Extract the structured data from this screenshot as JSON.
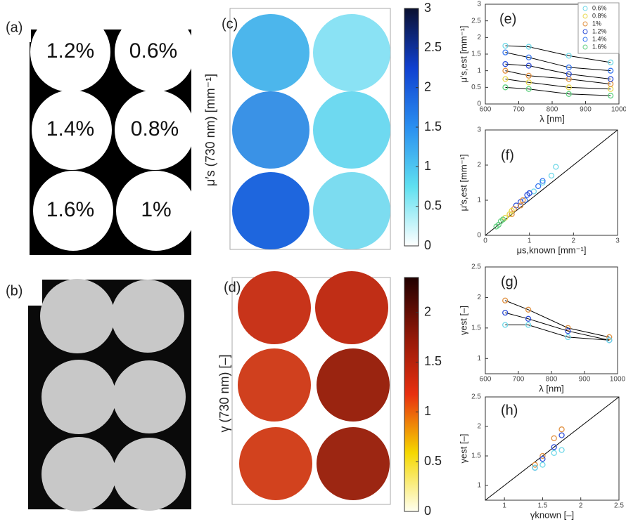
{
  "panels": {
    "a": {
      "label": "(a)",
      "wells": [
        "1.2%",
        "0.6%",
        "1.4%",
        "0.8%",
        "1.6%",
        "1%"
      ]
    },
    "b": {
      "label": "(b)"
    }
  },
  "chart_data": [
    {
      "type": "colorbar",
      "label": "(c)",
      "ylabel": "μ′s (730 nm) [mm⁻¹]",
      "ylim": [
        0,
        3
      ],
      "yticks": [
        0,
        0.5,
        1,
        1.5,
        2,
        2.5,
        3
      ],
      "colors": [
        "#ffffff",
        "#5fe0f0",
        "#2a8ff0",
        "#1040d0",
        "#0a1030"
      ]
    },
    {
      "type": "colorbar",
      "label": "(d)",
      "ylabel": "γ (730 nm) [–]",
      "ylim": [
        0,
        2.35
      ],
      "yticks": [
        0,
        0.5,
        1,
        1.5,
        2
      ],
      "colors": [
        "#fffff0",
        "#f5d800",
        "#e83010",
        "#901808",
        "#200000"
      ]
    },
    {
      "type": "line",
      "label": "(e)",
      "xlabel": "λ [nm]",
      "ylabel": "μ′s,est [mm⁻¹]",
      "x": [
        660,
        730,
        850,
        975
      ],
      "xlim": [
        600,
        1000
      ],
      "xticks": [
        600,
        700,
        800,
        900,
        1000
      ],
      "ylim": [
        0,
        3
      ],
      "yticks": [
        0,
        0.5,
        1,
        1.5,
        2,
        2.5,
        3
      ],
      "line_color": "#000000",
      "legend": "upper right",
      "series": [
        {
          "name": "0.6%",
          "color": "#6fd8e8",
          "values": [
            1.75,
            1.72,
            1.45,
            1.25
          ]
        },
        {
          "name": "0.8%",
          "color": "#e8d850",
          "values": [
            0.75,
            0.65,
            0.5,
            0.45
          ]
        },
        {
          "name": "1%",
          "color": "#e09040",
          "values": [
            1.0,
            0.85,
            0.75,
            0.6
          ]
        },
        {
          "name": "1.2%",
          "color": "#3050d8",
          "values": [
            1.2,
            1.15,
            0.9,
            0.75
          ]
        },
        {
          "name": "1.4%",
          "color": "#3878f0",
          "values": [
            1.55,
            1.4,
            1.1,
            1.0
          ]
        },
        {
          "name": "1.6%",
          "color": "#60d080",
          "values": [
            0.5,
            0.45,
            0.3,
            0.25
          ]
        }
      ]
    },
    {
      "type": "scatter",
      "label": "(f)",
      "xlabel": "μs,known [mm⁻¹]",
      "ylabel": "μ′s,est [mm⁻¹]",
      "identity_line": true,
      "xlim": [
        0,
        3
      ],
      "xticks": [
        0,
        1,
        2,
        3
      ],
      "ylim": [
        0,
        3
      ],
      "yticks": [
        0,
        1,
        2,
        3
      ],
      "series": [
        {
          "color": "#6fd8e8",
          "x": [
            1.6,
            1.5,
            1.3,
            1.1
          ],
          "values": [
            1.95,
            1.7,
            1.5,
            1.25
          ]
        },
        {
          "color": "#3878f0",
          "x": [
            1.3,
            1.2,
            1.0,
            0.9
          ],
          "values": [
            1.55,
            1.4,
            1.2,
            1.0
          ]
        },
        {
          "color": "#3050d8",
          "x": [
            1.0,
            0.95,
            0.8,
            0.7
          ],
          "values": [
            1.2,
            1.15,
            0.95,
            0.85
          ]
        },
        {
          "color": "#e09040",
          "x": [
            0.85,
            0.8,
            0.65,
            0.6
          ],
          "values": [
            1.0,
            0.85,
            0.75,
            0.6
          ]
        },
        {
          "color": "#e8d850",
          "x": [
            0.6,
            0.55,
            0.45,
            0.4
          ],
          "values": [
            0.7,
            0.6,
            0.5,
            0.45
          ]
        },
        {
          "color": "#60d080",
          "x": [
            0.4,
            0.35,
            0.3,
            0.25
          ],
          "values": [
            0.45,
            0.4,
            0.3,
            0.25
          ]
        }
      ]
    },
    {
      "type": "line",
      "label": "(g)",
      "xlabel": "λ [nm]",
      "ylabel": "γest [–]",
      "x": [
        660,
        730,
        850,
        975
      ],
      "xlim": [
        600,
        1000
      ],
      "xticks": [
        600,
        700,
        800,
        900,
        1000
      ],
      "ylim": [
        0.75,
        2.5
      ],
      "yticks": [
        1,
        1.5,
        2,
        2.5
      ],
      "line_color": "#000000",
      "series": [
        {
          "color": "#e09040",
          "values": [
            1.95,
            1.8,
            1.5,
            1.35
          ]
        },
        {
          "color": "#3050d8",
          "values": [
            1.75,
            1.65,
            1.45,
            1.3
          ]
        },
        {
          "color": "#6fd8e8",
          "values": [
            1.55,
            1.55,
            1.35,
            1.3
          ]
        }
      ]
    },
    {
      "type": "scatter",
      "label": "(h)",
      "xlabel": "γknown [–]",
      "ylabel": "γest [–]",
      "identity_line": true,
      "xlim": [
        0.75,
        2.5
      ],
      "xticks": [
        1,
        1.5,
        2,
        2.5
      ],
      "ylim": [
        0.75,
        2.5
      ],
      "yticks": [
        1,
        1.5,
        2,
        2.5
      ],
      "series": [
        {
          "color": "#e09040",
          "x": [
            1.75,
            1.65,
            1.5,
            1.4
          ],
          "values": [
            1.95,
            1.8,
            1.5,
            1.35
          ]
        },
        {
          "color": "#3050d8",
          "x": [
            1.75,
            1.65,
            1.5,
            1.4
          ],
          "values": [
            1.85,
            1.65,
            1.45,
            1.3
          ]
        },
        {
          "color": "#6fd8e8",
          "x": [
            1.75,
            1.65,
            1.5,
            1.4
          ],
          "values": [
            1.6,
            1.55,
            1.35,
            1.3
          ]
        }
      ]
    }
  ]
}
